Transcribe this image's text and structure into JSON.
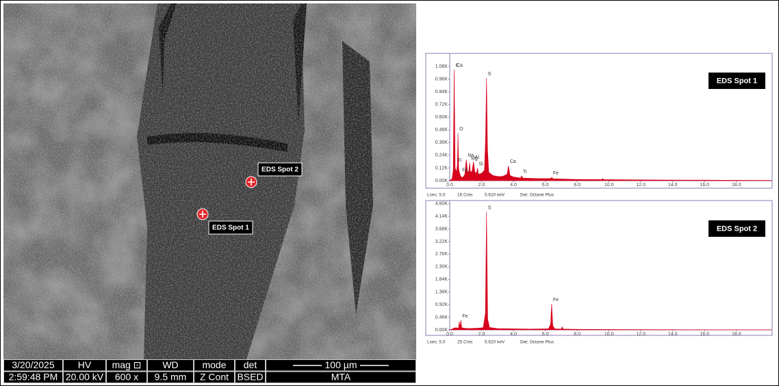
{
  "sem_image": {
    "spots": [
      {
        "label": "EDS Spot 1"
      },
      {
        "label": "EDS Spot 2"
      }
    ],
    "databar": {
      "header": [
        "3/20/2025",
        "HV",
        "mag ⊡",
        "WD",
        "mode",
        "det",
        "100 µm"
      ],
      "values": [
        "2:59:48 PM",
        "20.00 kV",
        "600 x",
        "9.5 mm",
        "Z Cont",
        "BSED",
        "MTA"
      ]
    }
  },
  "chart_data": [
    {
      "type": "area",
      "inset_label": "EDS Spot 1",
      "color": "#d6001c",
      "x": [
        0,
        0.15,
        0.22,
        0.28,
        0.34,
        0.42,
        0.48,
        0.52,
        0.56,
        0.64,
        0.7,
        0.76,
        0.85,
        0.95,
        1.04,
        1.12,
        1.2,
        1.25,
        1.3,
        1.4,
        1.49,
        1.58,
        1.68,
        1.74,
        1.8,
        2.0,
        2.18,
        2.25,
        2.31,
        2.37,
        2.45,
        2.7,
        3.0,
        3.3,
        3.6,
        3.69,
        3.78,
        4.0,
        4.45,
        4.51,
        4.6,
        5.5,
        6.3,
        6.4,
        6.5,
        8.0,
        9.5,
        9.6,
        9.7,
        12,
        14,
        16,
        18,
        20.2
      ],
      "values": [
        0,
        20,
        100,
        1050,
        120,
        80,
        150,
        450,
        110,
        60,
        40,
        30,
        35,
        60,
        200,
        80,
        90,
        170,
        80,
        90,
        180,
        80,
        70,
        120,
        60,
        70,
        100,
        400,
        970,
        300,
        80,
        50,
        40,
        40,
        60,
        140,
        50,
        35,
        25,
        45,
        25,
        20,
        20,
        30,
        18,
        12,
        10,
        18,
        10,
        8,
        6,
        5,
        4,
        3
      ],
      "annotations": [
        {
          "text": "C",
          "x": 0.28
        },
        {
          "text": "O",
          "x": 0.52
        },
        {
          "text": "Na",
          "x": 1.04
        },
        {
          "text": "Al",
          "x": 1.49
        },
        {
          "text": "Mg",
          "x": 1.25
        },
        {
          "text": "Si",
          "x": 1.74
        },
        {
          "text": "Ti",
          "x": 0.42
        },
        {
          "text": "Ca",
          "x": 0.34
        },
        {
          "text": "Fe",
          "x": 0.7
        },
        {
          "text": "S",
          "x": 2.31
        },
        {
          "text": "Ca",
          "x": 3.69
        },
        {
          "text": "Ti",
          "x": 4.51
        },
        {
          "text": "Fe",
          "x": 6.4
        }
      ],
      "xlim": [
        0,
        20.2
      ],
      "xticks": [
        {
          "value": 0,
          "label": "0.0"
        },
        {
          "value": 2,
          "label": "2.0"
        },
        {
          "value": 4,
          "label": "4.0"
        },
        {
          "value": 6,
          "label": "6.0"
        },
        {
          "value": 8,
          "label": "8.0"
        },
        {
          "value": 10,
          "label": "10.0"
        },
        {
          "value": 12,
          "label": "12.0"
        },
        {
          "value": 14,
          "label": "14.0"
        },
        {
          "value": 16,
          "label": "16.0"
        },
        {
          "value": 18,
          "label": "18.0"
        }
      ],
      "ylim": [
        0,
        1190
      ],
      "yticks": [
        {
          "value": 0,
          "label": "0.00K"
        },
        {
          "value": 120,
          "label": "0.12K"
        },
        {
          "value": 240,
          "label": "0.24K"
        },
        {
          "value": 360,
          "label": "0.36K"
        },
        {
          "value": 480,
          "label": "0.48K"
        },
        {
          "value": 600,
          "label": "0.60K"
        },
        {
          "value": 720,
          "label": "0.72K"
        },
        {
          "value": 840,
          "label": "0.84K"
        },
        {
          "value": 960,
          "label": "0.96K"
        },
        {
          "value": 1080,
          "label": "1.08K"
        }
      ],
      "footer": [
        "Lsec: 5.0",
        "16 Cnts",
        "5.620 keV",
        "Det: Octane Plus"
      ]
    },
    {
      "type": "area",
      "inset_label": "EDS Spot 2",
      "color": "#d6001c",
      "x": [
        0,
        0.15,
        0.25,
        0.4,
        0.55,
        0.6,
        0.65,
        0.7,
        0.75,
        0.9,
        1.2,
        1.7,
        2.1,
        2.24,
        2.31,
        2.38,
        2.5,
        3.0,
        4.0,
        5.0,
        6.2,
        6.33,
        6.4,
        6.47,
        6.6,
        7.0,
        7.06,
        7.12,
        8,
        10,
        12,
        14,
        16,
        18,
        20.2
      ],
      "values": [
        0,
        30,
        60,
        80,
        60,
        300,
        90,
        350,
        80,
        60,
        50,
        60,
        80,
        600,
        4300,
        400,
        90,
        50,
        40,
        30,
        40,
        200,
        950,
        150,
        40,
        30,
        110,
        30,
        20,
        15,
        10,
        8,
        6,
        5,
        4
      ],
      "annotations": [
        {
          "text": "S",
          "x": 2.31
        },
        {
          "text": "Fe",
          "x": 0.7
        },
        {
          "text": "Fe",
          "x": 6.4
        }
      ],
      "xlim": [
        0,
        20.2
      ],
      "xticks": [
        {
          "value": 0,
          "label": "0.0"
        },
        {
          "value": 2,
          "label": "2.0"
        },
        {
          "value": 4,
          "label": "4.0"
        },
        {
          "value": 6,
          "label": "6.0"
        },
        {
          "value": 8,
          "label": "8.0"
        },
        {
          "value": 10,
          "label": "10.0"
        },
        {
          "value": 12,
          "label": "12.0"
        },
        {
          "value": 14,
          "label": "14.0"
        },
        {
          "value": 16,
          "label": "16.0"
        },
        {
          "value": 18,
          "label": "18.0"
        }
      ],
      "ylim": [
        0,
        4640
      ],
      "yticks": [
        {
          "value": 0,
          "label": "0.00K"
        },
        {
          "value": 460,
          "label": "0.46K"
        },
        {
          "value": 920,
          "label": "0.92K"
        },
        {
          "value": 1380,
          "label": "1.38K"
        },
        {
          "value": 1840,
          "label": "1.84K"
        },
        {
          "value": 2300,
          "label": "2.30K"
        },
        {
          "value": 2760,
          "label": "2.76K"
        },
        {
          "value": 3220,
          "label": "3.22K"
        },
        {
          "value": 3680,
          "label": "3.68K"
        },
        {
          "value": 4140,
          "label": "4.14K"
        },
        {
          "value": 4600,
          "label": "4.60K"
        }
      ],
      "footer": [
        "Lsec: 5.0",
        "25 Cnts",
        "5.620 keV",
        "Det: Octane Plus"
      ]
    }
  ]
}
